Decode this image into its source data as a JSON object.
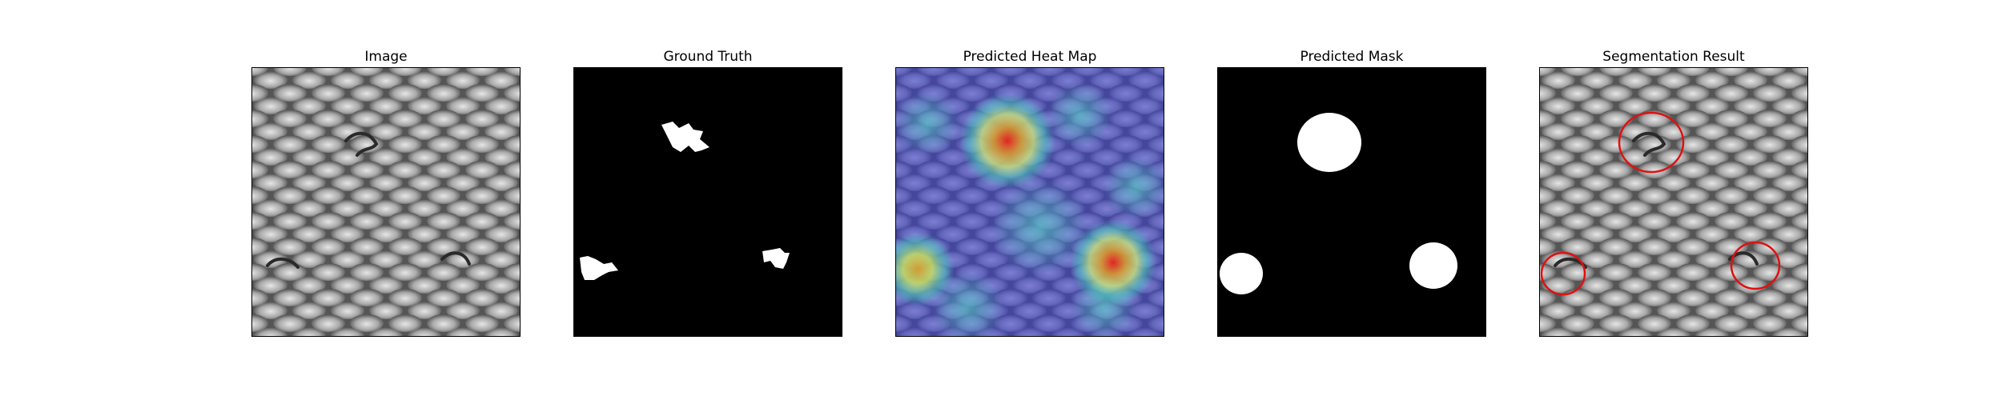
{
  "figure": {
    "panels": [
      {
        "id": "image",
        "title": "Image"
      },
      {
        "id": "ground-truth",
        "title": "Ground Truth"
      },
      {
        "id": "heat-map",
        "title": "Predicted Heat Map"
      },
      {
        "id": "mask",
        "title": "Predicted Mask"
      },
      {
        "id": "segmentation",
        "title": "Segmentation Result"
      }
    ],
    "colors": {
      "mesh_light": "#bdbdbd",
      "mesh_dark": "#4a4a4a",
      "mask_white": "#ffffff",
      "mask_black": "#000000",
      "contour": "#e01010",
      "heat_low": "#3a3fc8",
      "heat_mid": "#3fd0c0",
      "heat_high": "#e8201a"
    }
  }
}
